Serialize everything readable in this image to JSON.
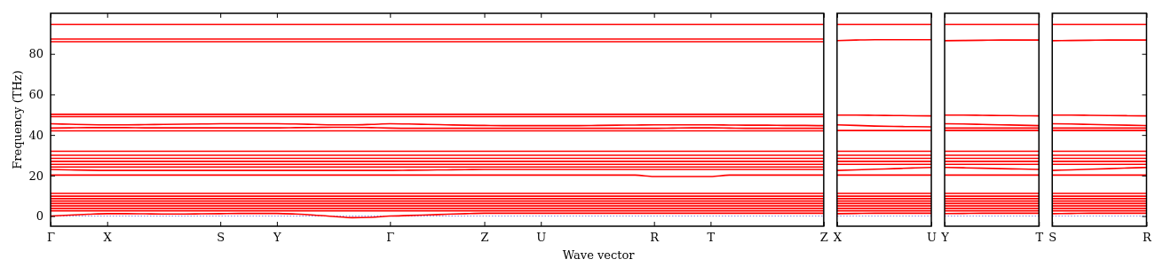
{
  "chart_data": [
    {
      "type": "line",
      "xlabel": "Wave vector",
      "ylabel": "Frequency (THz)",
      "ylim": [
        -5,
        100
      ],
      "yticks": [
        0,
        20,
        40,
        60,
        80
      ],
      "categories": [
        "Γ",
        null,
        null,
        "X",
        null,
        null,
        null,
        null,
        null,
        "S",
        null,
        null,
        "Y",
        null,
        null,
        null,
        null,
        null,
        "Γ",
        null,
        null,
        null,
        null,
        "Z",
        null,
        null,
        "U",
        null,
        null,
        null,
        null,
        null,
        "R",
        null,
        null,
        "T",
        null,
        null,
        null,
        null,
        null,
        "Z"
      ],
      "ref_lines": [
        {
          "axis": "y",
          "value": 0,
          "color": "#8080e0",
          "line_style": "dotted"
        }
      ],
      "series": [
        {
          "color": "#ff0000",
          "values": [
            94.5,
            94.5,
            94.5,
            94.5,
            94.5,
            94.5,
            94.5,
            94.5,
            94.5,
            94.5,
            94.5,
            94.5,
            94.5,
            94.5,
            94.5,
            94.5,
            94.5,
            94.5,
            94.5,
            94.5,
            94.5,
            94.5,
            94.5,
            94.5,
            94.5,
            94.5,
            94.5,
            94.5,
            94.5,
            94.5,
            94.5,
            94.5,
            94.5,
            94.5,
            94.5,
            94.5,
            94.5,
            94.5,
            94.5,
            94.5,
            94.5,
            94.5
          ]
        },
        {
          "color": "#ff0000",
          "values": [
            87.3,
            87.3,
            87.3,
            87.3,
            87.3,
            87.3,
            87.3,
            87.3,
            87.3,
            87.3,
            87.3,
            87.3,
            87.3,
            87.3,
            87.3,
            87.3,
            87.3,
            87.3,
            87.3,
            87.3,
            87.3,
            87.3,
            87.3,
            87.3,
            87.3,
            87.3,
            87.3,
            87.3,
            87.3,
            87.3,
            87.3,
            87.3,
            87.3,
            87.3,
            87.3,
            87.3,
            87.3,
            87.3,
            87.3,
            87.3,
            87.3,
            87.3
          ]
        },
        {
          "color": "#ff0000",
          "values": [
            86,
            86,
            86,
            86,
            86,
            86,
            86,
            86,
            86,
            86,
            86,
            86,
            86,
            86,
            86,
            86,
            86,
            86,
            86,
            86,
            86,
            86,
            86,
            86,
            86,
            86,
            86,
            86,
            86,
            86,
            86,
            86,
            86,
            86,
            86,
            86,
            86,
            86,
            86,
            86,
            86,
            86
          ]
        },
        {
          "color": "#ff0000",
          "values": [
            50.2,
            50.2,
            50.2,
            50.2,
            50.2,
            50.2,
            50.2,
            50.2,
            50.2,
            50.2,
            50.2,
            50.2,
            50.2,
            50.2,
            50.2,
            50.2,
            50.2,
            50.2,
            50.2,
            50.2,
            50.2,
            50.2,
            50.2,
            50.2,
            50.2,
            50.2,
            50.2,
            50.2,
            50.2,
            50.2,
            50.2,
            50.2,
            50.2,
            50.2,
            50.2,
            50.2,
            50.2,
            50.2,
            50.2,
            50.2,
            50.2,
            50.2
          ]
        },
        {
          "color": "#ff0000",
          "values": [
            49,
            49,
            49,
            49,
            49,
            49,
            49,
            49,
            49,
            49,
            49,
            49,
            49,
            49,
            49,
            49,
            49,
            49,
            49,
            49,
            49,
            49,
            49,
            49,
            49,
            49,
            49,
            49,
            49,
            49,
            49,
            49,
            49,
            49,
            49,
            49,
            49,
            49,
            49,
            49,
            49,
            49
          ]
        },
        {
          "color": "#ff0000",
          "values": [
            45.5,
            45.3,
            45.1,
            45,
            45,
            45.1,
            45.2,
            45.3,
            45.4,
            45.5,
            45.5,
            45.5,
            45.5,
            45.4,
            45.2,
            45,
            45,
            45.2,
            45.5,
            45.4,
            45.2,
            45,
            44.8,
            44.7,
            44.6,
            44.6,
            44.6,
            44.6,
            44.6,
            44.7,
            44.8,
            44.9,
            45,
            45,
            45,
            45,
            44.9,
            44.8,
            44.8,
            44.7,
            44.7,
            44.6
          ]
        },
        {
          "color": "#ff0000",
          "values": [
            43.4,
            43.5,
            43.6,
            43.6,
            43.6,
            43.5,
            43.5,
            43.5,
            43.5,
            43.5,
            43.5,
            43.5,
            43.5,
            43.6,
            43.7,
            43.8,
            43.8,
            43.6,
            43.4,
            43.3,
            43.3,
            43.3,
            43.3,
            43.3,
            43.3,
            43.3,
            43.3,
            43.3,
            43.3,
            43.3,
            43.3,
            43.3,
            43.3,
            43.4,
            43.5,
            43.5,
            43.4,
            43.3,
            43.3,
            43.3,
            43.3,
            43.3
          ]
        },
        {
          "color": "#ff0000",
          "values": [
            42,
            42,
            42,
            42,
            42,
            42,
            42,
            42,
            42,
            42,
            42,
            42,
            42,
            42,
            42,
            42,
            42,
            42,
            42,
            42,
            42,
            42,
            42,
            42,
            42,
            42,
            42,
            42,
            42,
            42,
            42,
            42,
            42,
            42,
            42,
            42,
            42,
            42,
            42,
            42,
            42,
            42
          ]
        },
        {
          "color": "#ff0000",
          "values": [
            32,
            32,
            32,
            32,
            32,
            32,
            32,
            32,
            32,
            32,
            32,
            32,
            32,
            32,
            32,
            32,
            32,
            32,
            32,
            32,
            32,
            32,
            32,
            32,
            32,
            32,
            32,
            32,
            32,
            32,
            32,
            32,
            32,
            32,
            32,
            32,
            32,
            32,
            32,
            32,
            32,
            32
          ]
        },
        {
          "color": "#ff0000",
          "values": [
            30,
            30,
            30,
            30,
            30,
            30,
            30,
            30,
            30,
            30,
            30,
            30,
            30,
            30,
            30,
            30,
            30,
            30,
            30,
            30,
            30,
            30,
            30,
            30,
            30,
            30,
            30,
            30,
            30,
            30,
            30,
            30,
            30,
            30,
            30,
            30,
            30,
            30,
            30,
            30,
            30,
            30
          ]
        },
        {
          "color": "#ff0000",
          "values": [
            28.5,
            28.5,
            28.5,
            28.5,
            28.5,
            28.5,
            28.5,
            28.5,
            28.5,
            28.5,
            28.5,
            28.5,
            28.5,
            28.5,
            28.5,
            28.5,
            28.5,
            28.5,
            28.5,
            28.5,
            28.5,
            28.5,
            28.5,
            28.5,
            28.5,
            28.5,
            28.5,
            28.5,
            28.5,
            28.5,
            28.5,
            28.5,
            28.5,
            28.5,
            28.5,
            28.5,
            28.5,
            28.5,
            28.5,
            28.5,
            28.5,
            28.5
          ]
        },
        {
          "color": "#ff0000",
          "values": [
            27,
            27,
            27,
            27,
            27,
            27,
            27,
            27,
            27,
            27,
            27,
            27,
            27,
            27,
            27,
            27,
            27,
            27,
            27,
            27,
            27,
            27,
            27,
            27,
            27,
            27,
            27,
            27,
            27,
            27,
            27,
            27,
            27,
            27,
            27,
            27,
            27,
            27,
            27,
            27,
            27,
            27
          ]
        },
        {
          "color": "#ff0000",
          "values": [
            25.5,
            25.5,
            25.5,
            25.5,
            25.5,
            25.5,
            25.5,
            25.5,
            25.5,
            25.5,
            25.5,
            25.5,
            25.5,
            25.5,
            25.5,
            25.5,
            25.5,
            25.5,
            25.5,
            25.5,
            25.5,
            25.5,
            25.5,
            25.5,
            25.5,
            25.5,
            25.5,
            25.5,
            25.5,
            25.5,
            25.5,
            25.5,
            25.5,
            25.5,
            25.5,
            25.5,
            25.5,
            25.5,
            25.5,
            25.5,
            25.5,
            25.5
          ]
        },
        {
          "color": "#ff0000",
          "values": [
            24.2,
            24.2,
            24.2,
            24.2,
            24.2,
            24.2,
            24.2,
            24.2,
            24.2,
            24.2,
            24.2,
            24.2,
            24.2,
            24.2,
            24.2,
            24.2,
            24.2,
            24.2,
            24.2,
            24.2,
            24.2,
            24.2,
            24.2,
            24.2,
            24.2,
            24.2,
            24.2,
            24.2,
            24.2,
            24.2,
            24.2,
            24.2,
            24.2,
            24.2,
            24.2,
            24.2,
            24.2,
            24.2,
            24.2,
            24.2,
            24.2,
            24.2
          ]
        },
        {
          "color": "#ff0000",
          "values": [
            23,
            22.8,
            22.6,
            22.5,
            22.5,
            22.5,
            22.5,
            22.5,
            22.5,
            22.5,
            22.5,
            22.5,
            22.5,
            22.5,
            22.5,
            22.5,
            22.5,
            22.5,
            22.5,
            22.6,
            22.7,
            22.8,
            22.9,
            23,
            23,
            23,
            23,
            23,
            23,
            23,
            23,
            23,
            23,
            23,
            23,
            23,
            23,
            23,
            23,
            23,
            23,
            23
          ]
        },
        {
          "color": "#ff0000",
          "values": [
            20.2,
            20.2,
            20.2,
            20.2,
            20.2,
            20.2,
            20.2,
            20.2,
            20.2,
            20.2,
            20.2,
            20.2,
            20.2,
            20.2,
            20.2,
            20.2,
            20.2,
            20.2,
            20.2,
            20.2,
            20.2,
            20.2,
            20.2,
            20.2,
            20.2,
            20.2,
            20.2,
            20.2,
            20.2,
            20.2,
            20.2,
            20.2,
            19.5,
            19.5,
            19.5,
            19.5,
            20.2,
            20.2,
            20.2,
            20.2,
            20.2,
            20.2
          ]
        },
        {
          "color": "#ff0000",
          "values": [
            11.2,
            11.2,
            11.2,
            11.2,
            11.2,
            11.2,
            11.2,
            11.2,
            11.2,
            11.2,
            11.2,
            11.2,
            11.2,
            11.2,
            11.2,
            11.2,
            11.2,
            11.2,
            11.2,
            11.2,
            11.2,
            11.2,
            11.2,
            11.2,
            11.2,
            11.2,
            11.2,
            11.2,
            11.2,
            11.2,
            11.2,
            11.2,
            11.2,
            11.2,
            11.2,
            11.2,
            11.2,
            11.2,
            11.2,
            11.2,
            11.2,
            11.2
          ]
        },
        {
          "color": "#ff0000",
          "values": [
            9.8,
            9.8,
            9.8,
            9.8,
            9.8,
            9.8,
            9.8,
            9.8,
            9.8,
            9.8,
            9.8,
            9.8,
            9.8,
            9.8,
            9.8,
            9.8,
            9.8,
            9.8,
            9.8,
            9.8,
            9.8,
            9.8,
            9.8,
            9.8,
            9.8,
            9.8,
            9.8,
            9.8,
            9.8,
            9.8,
            9.8,
            9.8,
            9.8,
            9.8,
            9.8,
            9.8,
            9.8,
            9.8,
            9.8,
            9.8,
            9.8,
            9.8
          ]
        },
        {
          "color": "#ff0000",
          "values": [
            8.6,
            8.6,
            8.6,
            8.6,
            8.6,
            8.6,
            8.6,
            8.6,
            8.6,
            8.6,
            8.6,
            8.6,
            8.6,
            8.6,
            8.6,
            8.6,
            8.6,
            8.6,
            8.6,
            8.6,
            8.6,
            8.6,
            8.6,
            8.6,
            8.6,
            8.6,
            8.6,
            8.6,
            8.6,
            8.6,
            8.6,
            8.6,
            8.6,
            8.6,
            8.6,
            8.6,
            8.6,
            8.6,
            8.6,
            8.6,
            8.6,
            8.6
          ]
        },
        {
          "color": "#ff0000",
          "values": [
            7.4,
            7.4,
            7.4,
            7.4,
            7.4,
            7.4,
            7.4,
            7.4,
            7.4,
            7.4,
            7.4,
            7.4,
            7.4,
            7.4,
            7.4,
            7.4,
            7.4,
            7.4,
            7.4,
            7.4,
            7.4,
            7.4,
            7.4,
            7.4,
            7.4,
            7.4,
            7.4,
            7.4,
            7.4,
            7.4,
            7.4,
            7.4,
            7.4,
            7.4,
            7.4,
            7.4,
            7.4,
            7.4,
            7.4,
            7.4,
            7.4,
            7.4
          ]
        },
        {
          "color": "#ff0000",
          "values": [
            6.2,
            6.2,
            6.2,
            6.2,
            6.2,
            6.2,
            6.2,
            6.2,
            6.2,
            6.2,
            6.2,
            6.2,
            6.2,
            6.2,
            6.2,
            6.2,
            6.2,
            6.2,
            6.2,
            6.2,
            6.2,
            6.2,
            6.2,
            6.2,
            6.2,
            6.2,
            6.2,
            6.2,
            6.2,
            6.2,
            6.2,
            6.2,
            6.2,
            6.2,
            6.2,
            6.2,
            6.2,
            6.2,
            6.2,
            6.2,
            6.2,
            6.2
          ]
        },
        {
          "color": "#ff0000",
          "values": [
            5,
            5,
            5,
            5,
            5,
            5,
            5,
            5,
            5,
            5,
            5,
            5,
            5,
            5,
            5,
            5,
            5,
            5,
            5,
            5,
            5,
            5,
            5,
            5,
            5,
            5,
            5,
            5,
            5,
            5,
            5,
            5,
            5,
            5,
            5,
            5,
            5,
            5,
            5,
            5,
            5,
            5
          ]
        },
        {
          "color": "#ff0000",
          "values": [
            3.8,
            3.8,
            3.8,
            3.8,
            3.8,
            3.8,
            3.8,
            3.8,
            3.8,
            3.8,
            3.8,
            3.8,
            3.8,
            3.8,
            3.8,
            3.8,
            3.8,
            3.8,
            3.8,
            3.8,
            3.8,
            3.8,
            3.8,
            3.8,
            3.8,
            3.8,
            3.8,
            3.8,
            3.8,
            3.8,
            3.8,
            3.8,
            3.8,
            3.8,
            3.8,
            3.8,
            3.8,
            3.8,
            3.8,
            3.8,
            3.8,
            3.8
          ]
        },
        {
          "color": "#ff0000",
          "values": [
            2.6,
            2.6,
            2.6,
            2.6,
            2.6,
            2.6,
            2.6,
            2.6,
            2.6,
            2.6,
            2.6,
            2.6,
            2.6,
            2.6,
            2.6,
            2.6,
            2.6,
            2.6,
            2.6,
            2.6,
            2.6,
            2.6,
            2.6,
            2.6,
            2.6,
            2.6,
            2.6,
            2.6,
            2.6,
            2.6,
            2.6,
            2.6,
            2.6,
            2.6,
            2.6,
            2.6,
            2.6,
            2.6,
            2.6,
            2.6,
            2.6,
            2.6
          ]
        },
        {
          "color": "#ff0000",
          "values": [
            0,
            0.5,
            0.9,
            1.2,
            1.2,
            1.1,
            1,
            1,
            1.1,
            1.2,
            1.3,
            1.3,
            1.3,
            1,
            0.5,
            -0.2,
            -0.8,
            -0.6,
            0,
            0.3,
            0.6,
            0.9,
            1.2,
            1.4,
            1.4,
            1.4,
            1.4,
            1.4,
            1.4,
            1.4,
            1.4,
            1.4,
            1.4,
            1.4,
            1.4,
            1.4,
            1.4,
            1.4,
            1.4,
            1.4,
            1.4,
            1.4
          ]
        }
      ]
    },
    {
      "type": "line",
      "tick_labels": "x",
      "ylim": [
        -5,
        100
      ],
      "yticks": [
        0,
        20,
        40,
        60,
        80
      ],
      "categories": [
        "X",
        null,
        null,
        null,
        null,
        "U"
      ],
      "ref_lines": [
        {
          "axis": "y",
          "value": 0,
          "color": "#8080e0",
          "line_style": "dotted"
        }
      ],
      "series": [
        {
          "color": "#ff0000",
          "values": [
            94.5,
            94.5,
            94.5,
            94.5,
            94.5,
            94.5
          ]
        },
        {
          "color": "#ff0000",
          "values": [
            86.5,
            86.8,
            87,
            87,
            87,
            87
          ]
        },
        {
          "color": "#ff0000",
          "values": [
            49.8,
            49.8,
            49.7,
            49.6,
            49.5,
            49.4
          ]
        },
        {
          "color": "#ff0000",
          "values": [
            45,
            44.7,
            44.4,
            44.2,
            44.1,
            44
          ]
        },
        {
          "color": "#ff0000",
          "values": [
            42.2,
            42.2,
            42.2,
            42.2,
            42.2,
            42.2
          ]
        },
        {
          "color": "#ff0000",
          "values": [
            32,
            32,
            32,
            32,
            32,
            32
          ]
        },
        {
          "color": "#ff0000",
          "values": [
            30,
            30,
            30,
            30,
            30,
            30
          ]
        },
        {
          "color": "#ff0000",
          "values": [
            28.5,
            28.5,
            28.5,
            28.5,
            28.5,
            28.5
          ]
        },
        {
          "color": "#ff0000",
          "values": [
            27,
            27,
            27,
            27,
            27,
            27
          ]
        },
        {
          "color": "#ff0000",
          "values": [
            25.5,
            25.5,
            25.5,
            25.5,
            25.5,
            25.5
          ]
        },
        {
          "color": "#ff0000",
          "values": [
            22.5,
            22.8,
            23.1,
            23.4,
            23.7,
            24
          ]
        },
        {
          "color": "#ff0000",
          "values": [
            20.2,
            20.2,
            20.2,
            20.2,
            20.2,
            20.2
          ]
        },
        {
          "color": "#ff0000",
          "values": [
            11.2,
            11.2,
            11.2,
            11.2,
            11.2,
            11.2
          ]
        },
        {
          "color": "#ff0000",
          "values": [
            9.8,
            9.8,
            9.8,
            9.8,
            9.8,
            9.8
          ]
        },
        {
          "color": "#ff0000",
          "values": [
            8.6,
            8.6,
            8.6,
            8.6,
            8.6,
            8.6
          ]
        },
        {
          "color": "#ff0000",
          "values": [
            7.4,
            7.4,
            7.4,
            7.4,
            7.4,
            7.4
          ]
        },
        {
          "color": "#ff0000",
          "values": [
            6.2,
            6.2,
            6.2,
            6.2,
            6.2,
            6.2
          ]
        },
        {
          "color": "#ff0000",
          "values": [
            5,
            5,
            5,
            5,
            5,
            5
          ]
        },
        {
          "color": "#ff0000",
          "values": [
            3.8,
            3.8,
            3.8,
            3.8,
            3.8,
            3.8
          ]
        },
        {
          "color": "#ff0000",
          "values": [
            2.6,
            2.6,
            2.6,
            2.6,
            2.6,
            2.6
          ]
        },
        {
          "color": "#ff0000",
          "values": [
            1.2,
            1.3,
            1.4,
            1.4,
            1.4,
            1.4
          ]
        }
      ]
    },
    {
      "type": "line",
      "tick_labels": "x",
      "ylim": [
        -5,
        100
      ],
      "yticks": [
        0,
        20,
        40,
        60,
        80
      ],
      "categories": [
        "Y",
        null,
        null,
        null,
        null,
        "T"
      ],
      "ref_lines": [
        {
          "axis": "y",
          "value": 0,
          "color": "#8080e0",
          "line_style": "dotted"
        }
      ],
      "series": [
        {
          "color": "#ff0000",
          "values": [
            94.5,
            94.5,
            94.5,
            94.5,
            94.5,
            94.5
          ]
        },
        {
          "color": "#ff0000",
          "values": [
            86.5,
            86.6,
            86.7,
            86.8,
            86.8,
            86.8
          ]
        },
        {
          "color": "#ff0000",
          "values": [
            49.8,
            49.8,
            49.7,
            49.6,
            49.5,
            49.4
          ]
        },
        {
          "color": "#ff0000",
          "values": [
            45.5,
            45.4,
            45.2,
            45,
            44.8,
            44.6
          ]
        },
        {
          "color": "#ff0000",
          "values": [
            43.4,
            43.4,
            43.4,
            43.4,
            43.4,
            43.4
          ]
        },
        {
          "color": "#ff0000",
          "values": [
            42.2,
            42.2,
            42.2,
            42.2,
            42.2,
            42.2
          ]
        },
        {
          "color": "#ff0000",
          "values": [
            32,
            32,
            32,
            32,
            32,
            32
          ]
        },
        {
          "color": "#ff0000",
          "values": [
            30,
            30,
            30,
            30,
            30,
            30
          ]
        },
        {
          "color": "#ff0000",
          "values": [
            28.5,
            28.5,
            28.5,
            28.5,
            28.5,
            28.5
          ]
        },
        {
          "color": "#ff0000",
          "values": [
            27,
            27,
            27,
            27,
            27,
            27
          ]
        },
        {
          "color": "#ff0000",
          "values": [
            25.5,
            25.5,
            25.5,
            25.5,
            25.5,
            25.5
          ]
        },
        {
          "color": "#ff0000",
          "values": [
            24,
            23.8,
            23.6,
            23.4,
            23.2,
            23
          ]
        },
        {
          "color": "#ff0000",
          "values": [
            20.2,
            20.2,
            20.2,
            20.2,
            20.2,
            20.2
          ]
        },
        {
          "color": "#ff0000",
          "values": [
            11.2,
            11.2,
            11.2,
            11.2,
            11.2,
            11.2
          ]
        },
        {
          "color": "#ff0000",
          "values": [
            9.8,
            9.8,
            9.8,
            9.8,
            9.8,
            9.8
          ]
        },
        {
          "color": "#ff0000",
          "values": [
            8.6,
            8.6,
            8.6,
            8.6,
            8.6,
            8.6
          ]
        },
        {
          "color": "#ff0000",
          "values": [
            7.4,
            7.4,
            7.4,
            7.4,
            7.4,
            7.4
          ]
        },
        {
          "color": "#ff0000",
          "values": [
            6.2,
            6.2,
            6.2,
            6.2,
            6.2,
            6.2
          ]
        },
        {
          "color": "#ff0000",
          "values": [
            5,
            5,
            5,
            5,
            5,
            5
          ]
        },
        {
          "color": "#ff0000",
          "values": [
            3.8,
            3.8,
            3.8,
            3.8,
            3.8,
            3.8
          ]
        },
        {
          "color": "#ff0000",
          "values": [
            2.6,
            2.6,
            2.6,
            2.6,
            2.6,
            2.6
          ]
        },
        {
          "color": "#ff0000",
          "values": [
            1.2,
            1.3,
            1.4,
            1.4,
            1.4,
            1.4
          ]
        }
      ]
    },
    {
      "type": "line",
      "tick_labels": "x",
      "ylim": [
        -5,
        100
      ],
      "yticks": [
        0,
        20,
        40,
        60,
        80
      ],
      "categories": [
        "S",
        null,
        null,
        null,
        null,
        "R"
      ],
      "ref_lines": [
        {
          "axis": "y",
          "value": 0,
          "color": "#8080e0",
          "line_style": "dotted"
        }
      ],
      "series": [
        {
          "color": "#ff0000",
          "values": [
            94.5,
            94.5,
            94.5,
            94.5,
            94.5,
            94.5
          ]
        },
        {
          "color": "#ff0000",
          "values": [
            86.5,
            86.6,
            86.7,
            86.8,
            86.8,
            86.8
          ]
        },
        {
          "color": "#ff0000",
          "values": [
            49.8,
            49.8,
            49.7,
            49.6,
            49.5,
            49.4
          ]
        },
        {
          "color": "#ff0000",
          "values": [
            45.5,
            45.4,
            45.2,
            45,
            44.8,
            44.6
          ]
        },
        {
          "color": "#ff0000",
          "values": [
            43.4,
            43.4,
            43.4,
            43.4,
            43.4,
            43.4
          ]
        },
        {
          "color": "#ff0000",
          "values": [
            42.2,
            42.2,
            42.2,
            42.2,
            42.2,
            42.2
          ]
        },
        {
          "color": "#ff0000",
          "values": [
            32,
            32,
            32,
            32,
            32,
            32
          ]
        },
        {
          "color": "#ff0000",
          "values": [
            30,
            30,
            30,
            30,
            30,
            30
          ]
        },
        {
          "color": "#ff0000",
          "values": [
            28.5,
            28.5,
            28.5,
            28.5,
            28.5,
            28.5
          ]
        },
        {
          "color": "#ff0000",
          "values": [
            27,
            27,
            27,
            27,
            27,
            27
          ]
        },
        {
          "color": "#ff0000",
          "values": [
            25.5,
            25.5,
            25.5,
            25.5,
            25.5,
            25.5
          ]
        },
        {
          "color": "#ff0000",
          "values": [
            22.5,
            22.8,
            23.1,
            23.4,
            23.7,
            24
          ]
        },
        {
          "color": "#ff0000",
          "values": [
            20.2,
            20.2,
            20.2,
            20.2,
            20.2,
            20.2
          ]
        },
        {
          "color": "#ff0000",
          "values": [
            11.2,
            11.2,
            11.2,
            11.2,
            11.2,
            11.2
          ]
        },
        {
          "color": "#ff0000",
          "values": [
            9.8,
            9.8,
            9.8,
            9.8,
            9.8,
            9.8
          ]
        },
        {
          "color": "#ff0000",
          "values": [
            8.6,
            8.6,
            8.6,
            8.6,
            8.6,
            8.6
          ]
        },
        {
          "color": "#ff0000",
          "values": [
            7.4,
            7.4,
            7.4,
            7.4,
            7.4,
            7.4
          ]
        },
        {
          "color": "#ff0000",
          "values": [
            6.2,
            6.2,
            6.2,
            6.2,
            6.2,
            6.2
          ]
        },
        {
          "color": "#ff0000",
          "values": [
            5,
            5,
            5,
            5,
            5,
            5
          ]
        },
        {
          "color": "#ff0000",
          "values": [
            3.8,
            3.8,
            3.8,
            3.8,
            3.8,
            3.8
          ]
        },
        {
          "color": "#ff0000",
          "values": [
            2.6,
            2.6,
            2.6,
            2.6,
            2.6,
            2.6
          ]
        },
        {
          "color": "#ff0000",
          "values": [
            1.2,
            1.3,
            1.4,
            1.4,
            1.4,
            1.4
          ]
        }
      ]
    }
  ]
}
